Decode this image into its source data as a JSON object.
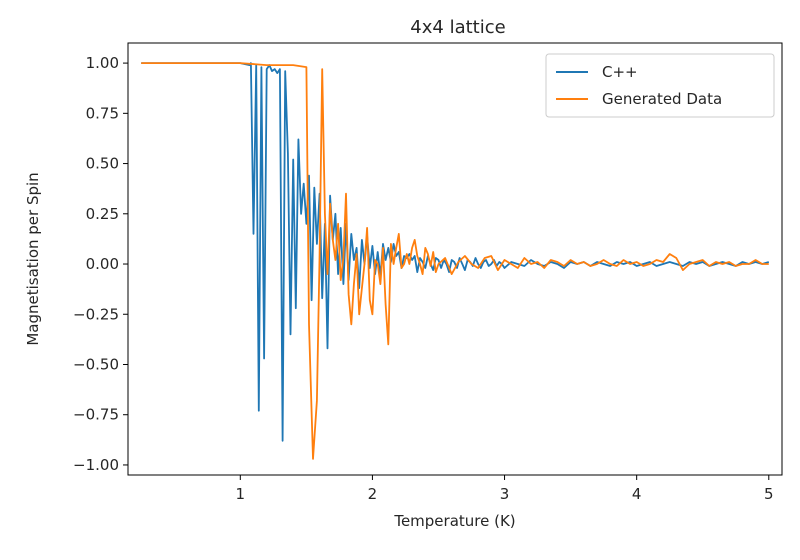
{
  "chart_data": {
    "type": "line",
    "title": "4x4 lattice",
    "xlabel": "Temperature (K)",
    "ylabel": "Magnetisation per Spin",
    "xlim": [
      0.15,
      5.1
    ],
    "ylim": [
      -1.05,
      1.1
    ],
    "xticks": [
      1,
      2,
      3,
      4,
      5
    ],
    "xtick_labels": [
      "1",
      "2",
      "3",
      "4",
      "5"
    ],
    "yticks": [
      1.0,
      0.75,
      0.5,
      0.25,
      0.0,
      -0.25,
      -0.5,
      -0.75,
      -1.0
    ],
    "ytick_labels": [
      "1.00",
      "0.75",
      "0.50",
      "0.25",
      "0.00",
      "−0.25",
      "−0.50",
      "−0.75",
      "−1.00"
    ],
    "grid": false,
    "legend_position": "top-right",
    "series": [
      {
        "name": "C++",
        "color": "#1f77b4",
        "x": [
          0.25,
          1.0,
          1.07,
          1.08,
          1.1,
          1.12,
          1.14,
          1.16,
          1.18,
          1.2,
          1.22,
          1.24,
          1.26,
          1.28,
          1.3,
          1.32,
          1.34,
          1.36,
          1.38,
          1.4,
          1.42,
          1.44,
          1.46,
          1.48,
          1.5,
          1.52,
          1.54,
          1.56,
          1.58,
          1.6,
          1.62,
          1.64,
          1.66,
          1.68,
          1.7,
          1.72,
          1.74,
          1.76,
          1.78,
          1.8,
          1.82,
          1.84,
          1.86,
          1.88,
          1.9,
          1.92,
          1.94,
          1.96,
          1.98,
          2.0,
          2.02,
          2.04,
          2.06,
          2.08,
          2.1,
          2.12,
          2.14,
          2.16,
          2.18,
          2.2,
          2.22,
          2.24,
          2.26,
          2.28,
          2.3,
          2.32,
          2.34,
          2.36,
          2.38,
          2.4,
          2.42,
          2.44,
          2.46,
          2.48,
          2.5,
          2.52,
          2.54,
          2.56,
          2.58,
          2.6,
          2.62,
          2.64,
          2.66,
          2.68,
          2.7,
          2.72,
          2.74,
          2.76,
          2.78,
          2.8,
          2.82,
          2.84,
          2.86,
          2.88,
          2.9,
          2.92,
          2.94,
          2.96,
          2.98,
          3.0,
          3.05,
          3.1,
          3.15,
          3.2,
          3.25,
          3.3,
          3.35,
          3.4,
          3.45,
          3.5,
          3.55,
          3.6,
          3.65,
          3.7,
          3.75,
          3.8,
          3.85,
          3.9,
          3.95,
          4.0,
          4.05,
          4.1,
          4.15,
          4.2,
          4.25,
          4.3,
          4.35,
          4.4,
          4.45,
          4.5,
          4.55,
          4.6,
          4.65,
          4.7,
          4.75,
          4.8,
          4.85,
          4.9,
          4.95,
          5.0
        ],
        "y": [
          1.0,
          1.0,
          0.99,
          1.0,
          0.15,
          0.99,
          -0.73,
          0.98,
          -0.47,
          0.97,
          0.99,
          0.96,
          0.97,
          0.95,
          0.97,
          -0.88,
          0.96,
          0.55,
          -0.35,
          0.52,
          -0.22,
          0.62,
          0.25,
          0.4,
          0.2,
          0.44,
          -0.18,
          0.38,
          0.1,
          0.35,
          -0.17,
          0.2,
          -0.42,
          0.34,
          0.12,
          0.25,
          -0.05,
          0.18,
          -0.1,
          0.2,
          -0.08,
          0.15,
          0.02,
          0.08,
          -0.12,
          0.12,
          0.0,
          0.14,
          -0.02,
          0.09,
          -0.05,
          0.06,
          -0.06,
          0.1,
          0.02,
          0.08,
          0.01,
          0.1,
          0.04,
          0.06,
          -0.02,
          0.04,
          0.03,
          0.05,
          0.02,
          0.04,
          -0.04,
          0.03,
          0.01,
          -0.02,
          0.04,
          0.0,
          -0.03,
          0.03,
          0.02,
          -0.02,
          0.02,
          0.0,
          -0.04,
          0.02,
          0.01,
          -0.02,
          0.03,
          0.0,
          -0.03,
          0.02,
          0.01,
          -0.01,
          0.03,
          0.0,
          -0.02,
          0.01,
          0.02,
          -0.01,
          0.0,
          0.02,
          -0.01,
          0.01,
          0.0,
          -0.02,
          0.01,
          0.0,
          -0.01,
          0.02,
          0.0,
          -0.01,
          0.01,
          0.0,
          -0.02,
          0.01,
          0.0,
          0.01,
          -0.01,
          0.01,
          0.0,
          -0.01,
          0.01,
          0.0,
          0.01,
          -0.01,
          0.0,
          0.01,
          -0.01,
          0.0,
          0.01,
          0.0,
          -0.01,
          0.01,
          0.0,
          0.01,
          -0.01,
          0.0,
          0.01,
          0.0,
          -0.01,
          0.01,
          0.0,
          0.01,
          0.0,
          0.01
        ]
      },
      {
        "name": "Generated Data",
        "color": "#ff7f0e",
        "x": [
          0.25,
          0.5,
          1.0,
          1.2,
          1.3,
          1.4,
          1.5,
          1.52,
          1.55,
          1.58,
          1.6,
          1.62,
          1.64,
          1.66,
          1.68,
          1.7,
          1.72,
          1.74,
          1.76,
          1.78,
          1.8,
          1.82,
          1.84,
          1.86,
          1.88,
          1.9,
          1.92,
          1.94,
          1.96,
          1.98,
          2.0,
          2.02,
          2.04,
          2.06,
          2.08,
          2.1,
          2.12,
          2.14,
          2.16,
          2.18,
          2.2,
          2.22,
          2.24,
          2.26,
          2.28,
          2.3,
          2.32,
          2.34,
          2.36,
          2.38,
          2.4,
          2.42,
          2.44,
          2.46,
          2.48,
          2.5,
          2.55,
          2.6,
          2.65,
          2.7,
          2.75,
          2.8,
          2.85,
          2.9,
          2.95,
          3.0,
          3.05,
          3.1,
          3.15,
          3.2,
          3.25,
          3.3,
          3.35,
          3.4,
          3.45,
          3.5,
          3.55,
          3.6,
          3.65,
          3.7,
          3.75,
          3.8,
          3.85,
          3.9,
          3.95,
          4.0,
          4.05,
          4.1,
          4.15,
          4.2,
          4.25,
          4.3,
          4.35,
          4.4,
          4.45,
          4.5,
          4.55,
          4.6,
          4.65,
          4.7,
          4.75,
          4.8,
          4.85,
          4.9,
          4.95,
          5.0
        ],
        "y": [
          1.0,
          1.0,
          1.0,
          0.99,
          0.99,
          0.99,
          0.98,
          -0.3,
          -0.97,
          -0.68,
          0.05,
          0.97,
          0.25,
          -0.05,
          0.3,
          0.12,
          0.02,
          0.2,
          -0.08,
          0.03,
          0.35,
          -0.15,
          -0.3,
          -0.1,
          0.05,
          -0.25,
          -0.12,
          0.0,
          0.18,
          -0.18,
          -0.25,
          0.02,
          0.0,
          -0.1,
          0.08,
          -0.2,
          -0.4,
          0.1,
          0.0,
          0.08,
          0.15,
          -0.02,
          0.0,
          0.05,
          0.0,
          0.08,
          0.12,
          0.04,
          0.0,
          -0.05,
          0.08,
          0.05,
          -0.01,
          0.06,
          -0.04,
          0.0,
          0.03,
          -0.05,
          0.01,
          0.04,
          0.0,
          -0.02,
          0.03,
          0.04,
          -0.03,
          0.02,
          0.0,
          -0.02,
          0.03,
          0.0,
          0.01,
          -0.02,
          0.02,
          0.01,
          -0.01,
          0.02,
          0.0,
          0.01,
          -0.01,
          0.0,
          0.02,
          0.0,
          -0.01,
          0.02,
          0.0,
          0.01,
          -0.01,
          0.0,
          0.02,
          0.01,
          0.05,
          0.03,
          -0.03,
          0.0,
          0.01,
          0.02,
          -0.01,
          0.01,
          0.0,
          0.01,
          -0.01,
          0.0,
          0.0,
          0.02,
          0.0,
          0.0
        ]
      }
    ]
  }
}
